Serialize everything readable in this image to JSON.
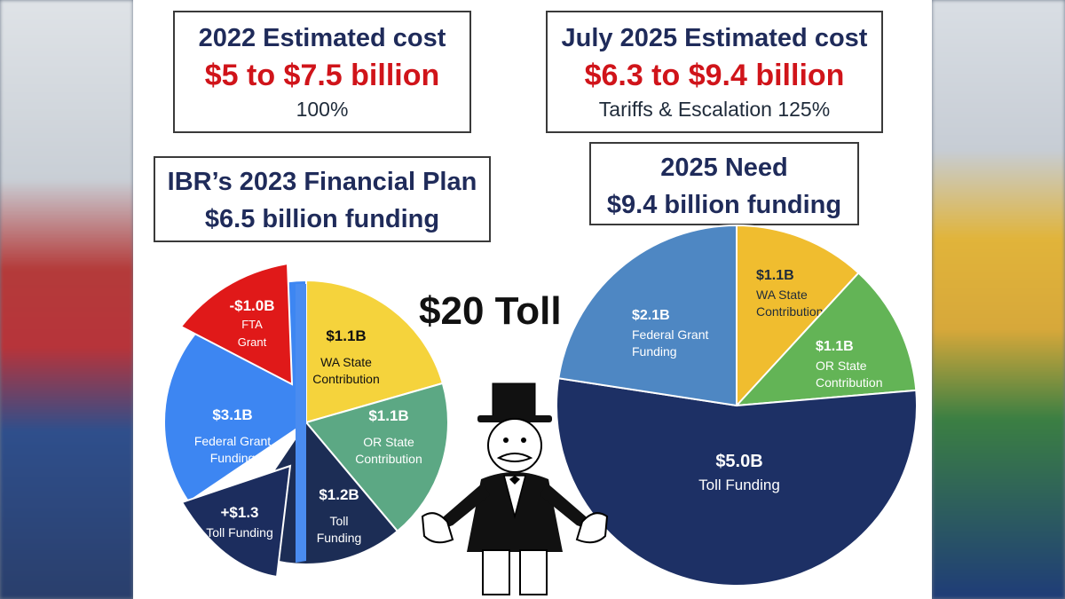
{
  "header_left": {
    "title": "2022 Estimated cost",
    "range": "$5 to $7.5 billion",
    "note": "100%"
  },
  "header_right": {
    "title": "July 2025 Estimated cost",
    "range": "$6.3 to $9.4 billion",
    "note": "Tariffs & Escalation 125%"
  },
  "plan_box": {
    "title": "IBR’s 2023 Financial Plan",
    "subtitle": "$6.5 billion funding"
  },
  "need_box": {
    "title": "2025 Need",
    "subtitle": "$9.4 billion funding"
  },
  "toll_title": "$20 Toll",
  "chart_data": [
    {
      "type": "pie",
      "title": "IBR’s 2023 Financial Plan",
      "slices": [
        {
          "value_label": "$1.1B",
          "name": "WA State Contribution",
          "value": 1.1,
          "color": "#f5d33c"
        },
        {
          "value_label": "$1.1B",
          "name": "OR State Contribution",
          "value": 1.1,
          "color": "#5ca884"
        },
        {
          "value_label": "$1.2B",
          "name": "Toll Funding",
          "value": 1.2,
          "color": "#1c2d55"
        },
        {
          "value_label": "$3.1B",
          "name": "Federal Grant Funding",
          "value": 3.1,
          "color": "#3d86f2"
        }
      ],
      "exploded": [
        {
          "value_label": "+$1.3",
          "name": "Toll Funding",
          "value": 1.3,
          "color": "#1c2d5e"
        },
        {
          "value_label": "-$1.0B",
          "name": "FTA Grant",
          "value": -1.0,
          "color": "#e01919"
        }
      ],
      "thin_slice_color": "#4a8cf0"
    },
    {
      "type": "pie",
      "title": "2025 Need",
      "slices": [
        {
          "value_label": "$1.1B",
          "name": "WA State Contribution",
          "value": 1.1,
          "color": "#f0bd2f"
        },
        {
          "value_label": "$1.1B",
          "name": "OR State Contribution",
          "value": 1.1,
          "color": "#63b456"
        },
        {
          "value_label": "$5.0B",
          "name": "Toll Funding",
          "value": 5.0,
          "color": "#1d3065"
        },
        {
          "value_label": "$2.1B",
          "name": "Federal Grant Funding",
          "value": 2.1,
          "color": "#4e87c3"
        }
      ]
    }
  ],
  "character": {
    "icon": "tycoon-figure-icon"
  }
}
